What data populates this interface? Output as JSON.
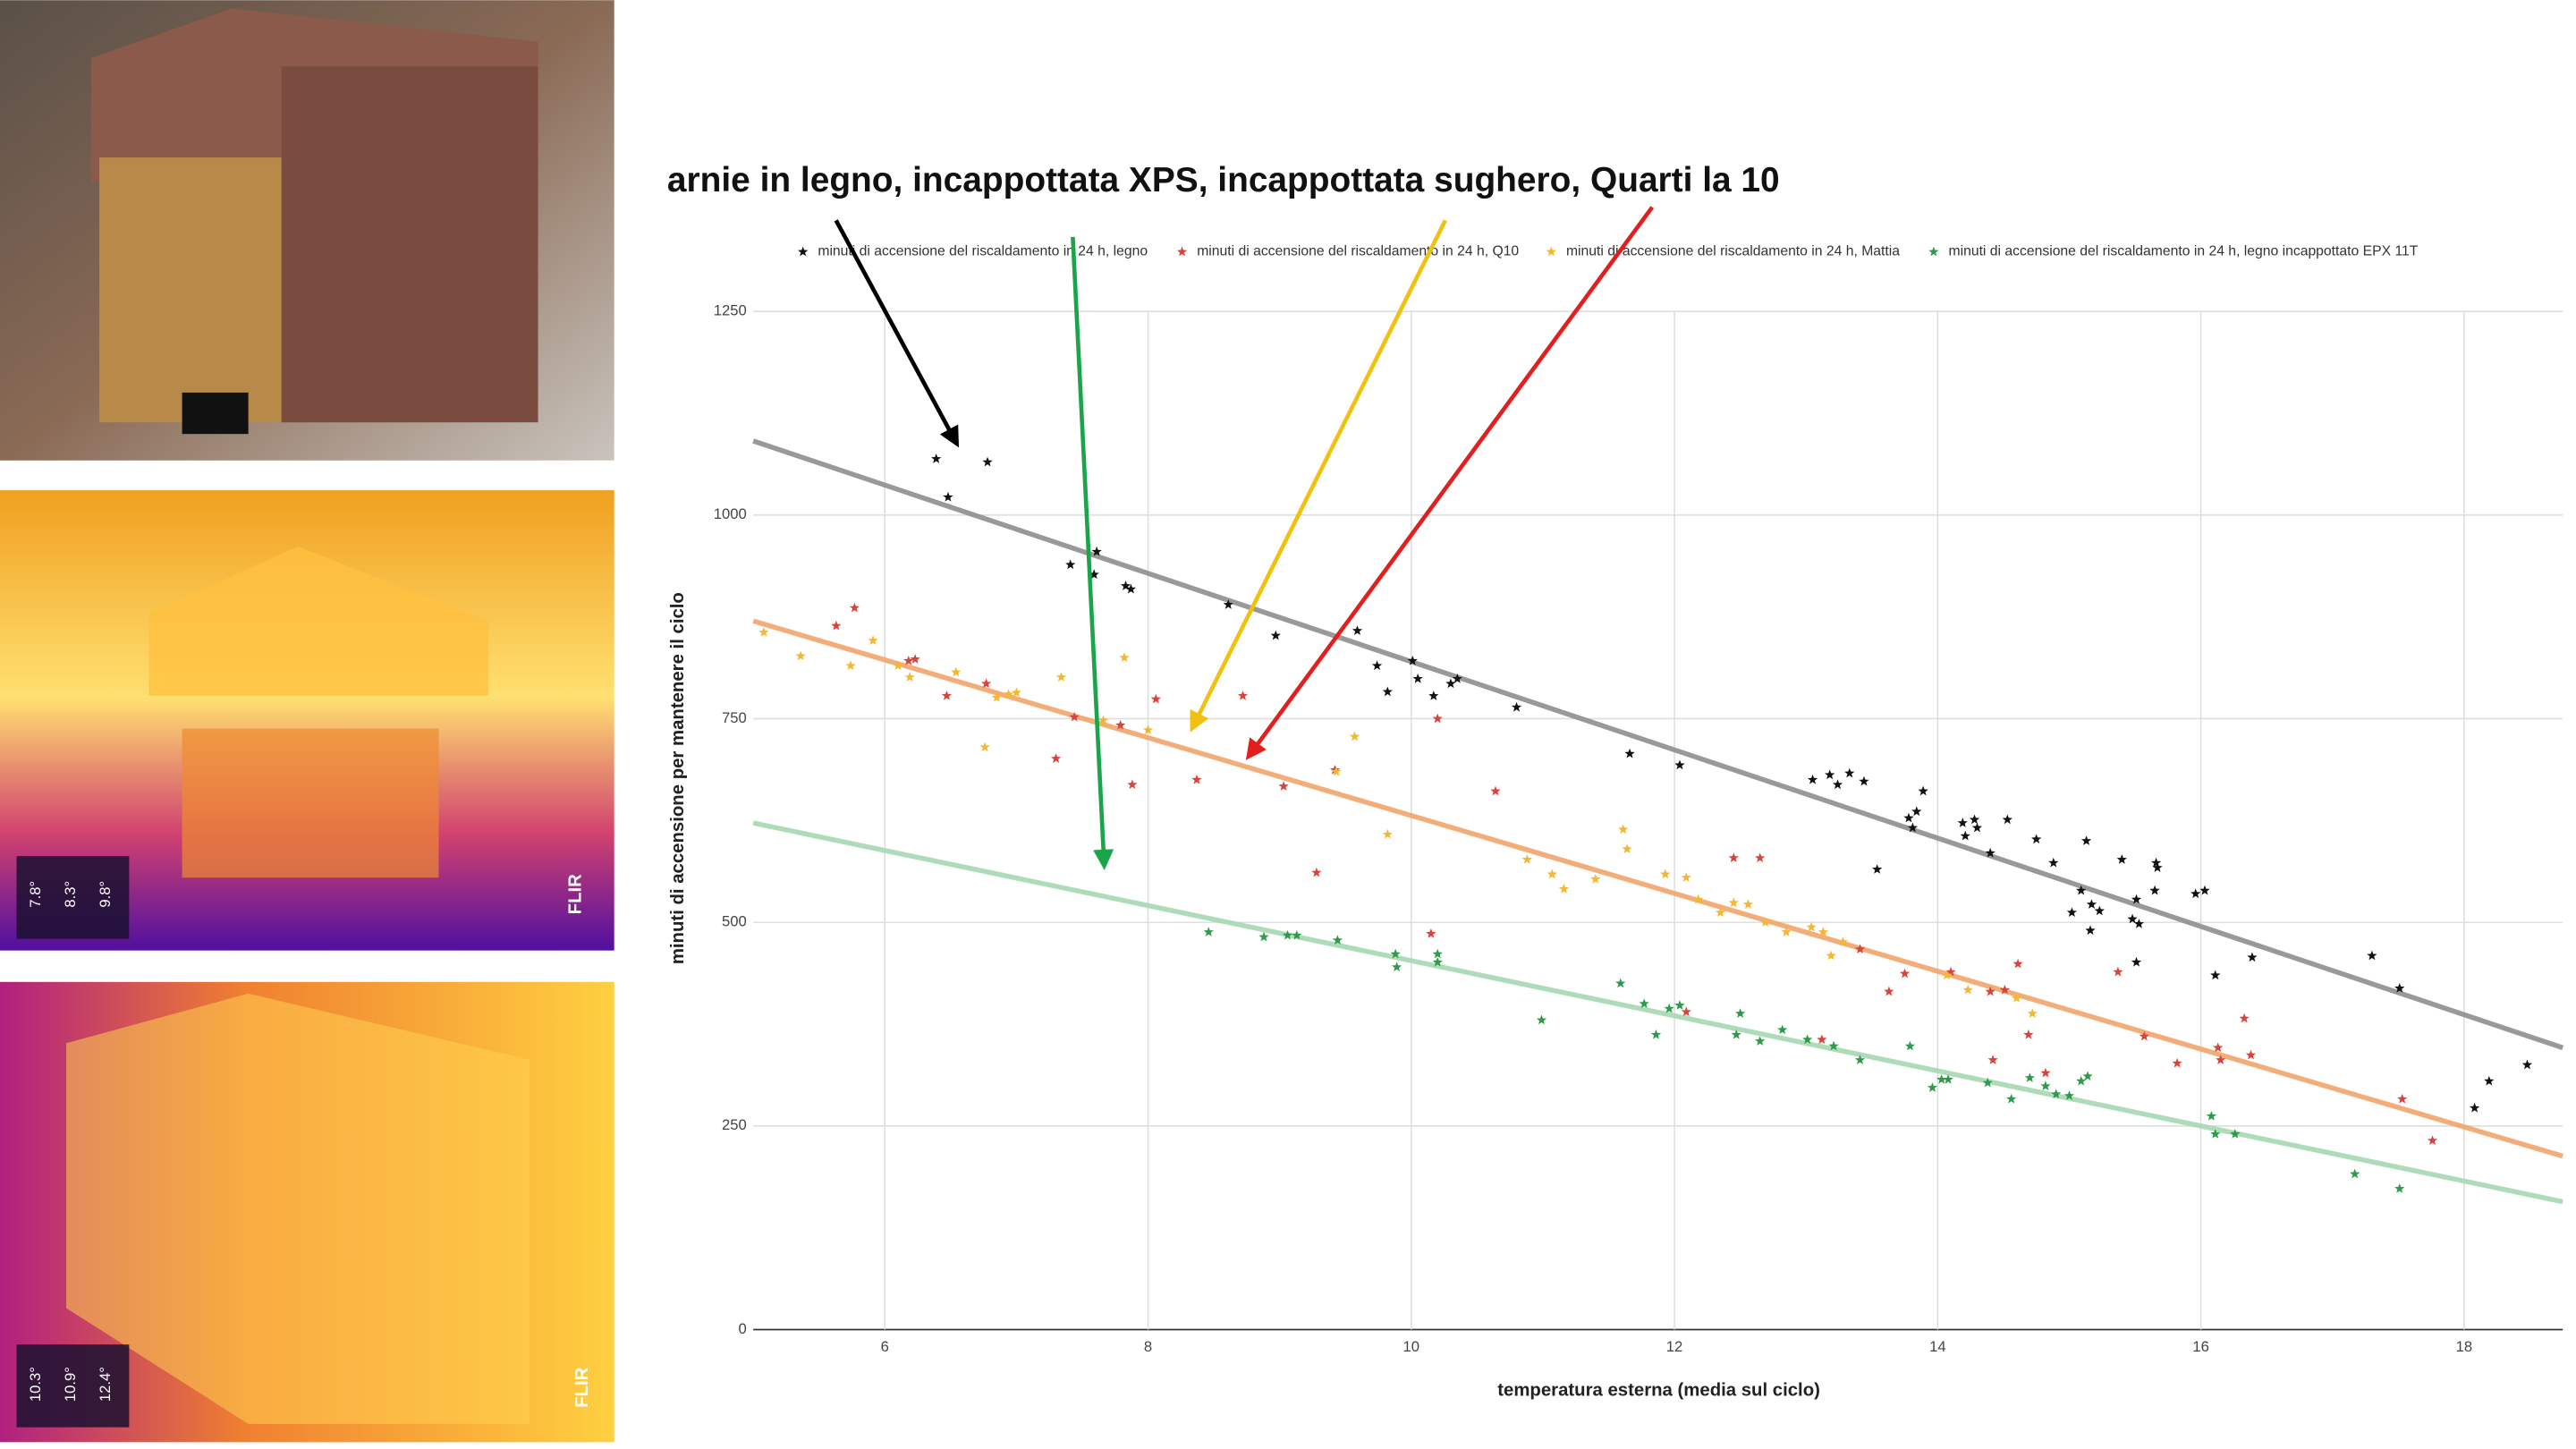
{
  "chart_data": {
    "type": "scatter",
    "title": "arnie in legno, incappottata XPS, incappottata sughero, Quarti la 10",
    "x_label": "temperatura esterna (media sul ciclo)",
    "y_label": "minuti di accensione per mantenere il ciclo",
    "xlim": [
      5,
      18.75
    ],
    "ylim": [
      0,
      1250
    ],
    "xticks": [
      6,
      8,
      10,
      12,
      14,
      16,
      18
    ],
    "yticks": [
      0,
      250,
      500,
      750,
      1000,
      1250
    ],
    "grid": true,
    "legend": "top",
    "series": [
      {
        "name": "minuti di accensione del riscaldamento in 24 h, legno",
        "color": "#111111",
        "x": [
          6.39,
          6.78,
          6.48,
          7.41,
          7.59,
          7.61,
          7.83,
          7.87,
          8.61,
          8.97,
          9.59,
          9.74,
          9.82,
          10.01,
          10.05,
          10.17,
          10.3,
          10.35,
          10.8,
          11.66,
          12.04,
          13.05,
          13.18,
          13.24,
          13.33,
          13.44,
          13.54,
          13.78,
          13.84,
          13.89,
          13.81,
          14.19,
          14.28,
          14.3,
          14.21,
          14.4,
          14.53,
          14.75,
          14.88,
          15.13,
          15.09,
          15.17,
          15.02,
          15.23,
          15.16,
          15.4,
          15.48,
          15.51,
          15.53,
          15.51,
          15.66,
          15.67,
          15.65,
          15.96,
          16.03,
          16.11,
          16.39,
          17.3,
          17.51,
          18.08,
          18.19,
          18.48
        ],
        "values": [
          1069,
          1065,
          1022,
          939,
          927,
          955,
          913,
          909,
          890,
          852,
          858,
          815,
          783,
          821,
          799,
          778,
          793,
          799,
          764,
          707,
          693,
          675,
          681,
          669,
          683,
          673,
          565,
          628,
          636,
          661,
          616,
          622,
          626,
          616,
          606,
          585,
          626,
          602,
          573,
          600,
          539,
          522,
          512,
          514,
          490,
          577,
          504,
          528,
          498,
          451,
          573,
          567,
          539,
          535,
          539,
          435,
          457,
          459,
          419,
          272,
          305,
          325
        ],
        "trendline": {
          "color": "#8e8e8e",
          "x": [
            5,
            18.75
          ],
          "values": [
            1091,
            346
          ]
        }
      },
      {
        "name": "minuti di accensione del riscaldamento in 24 h, Q10",
        "color": "#d9433b",
        "x": [
          5.63,
          5.77,
          6.18,
          6.23,
          6.47,
          6.77,
          7.3,
          7.44,
          7.79,
          7.88,
          8.06,
          8.37,
          8.72,
          9.03,
          9.28,
          9.42,
          10.15,
          10.2,
          10.64,
          12.45,
          12.65,
          12.09,
          13.12,
          13.41,
          13.63,
          13.75,
          14.1,
          14.4,
          14.51,
          14.61,
          14.42,
          14.69,
          14.82,
          15.37,
          15.57,
          15.82,
          16.13,
          16.15,
          16.33,
          16.38,
          17.53,
          17.76
        ],
        "values": [
          864,
          886,
          821,
          823,
          778,
          793,
          701,
          752,
          742,
          669,
          774,
          675,
          778,
          667,
          561,
          687,
          486,
          750,
          661,
          579,
          579,
          390,
          356,
          467,
          415,
          437,
          439,
          415,
          417,
          449,
          331,
          362,
          315,
          439,
          360,
          327,
          346,
          331,
          382,
          337,
          283,
          232
        ],
        "trendline": {
          "color": "#f2a46a",
          "x": [
            5,
            18.75
          ],
          "values": [
            870,
            213
          ]
        }
      },
      {
        "name": "minuti di accensione del riscaldamento in 24 h, Mattia",
        "color": "#f4b731",
        "x": [
          5.08,
          5.36,
          5.74,
          5.91,
          6.1,
          6.19,
          6.54,
          6.76,
          6.85,
          6.94,
          7,
          7.34,
          7.66,
          7.82,
          8,
          9.43,
          9.57,
          9.82,
          10.88,
          11.07,
          11.16,
          11.4,
          11.61,
          11.64,
          11.93,
          12.09,
          12.18,
          12.35,
          12.45,
          12.56,
          12.69,
          12.85,
          13.04,
          13.13,
          13.19,
          13.28,
          14.07,
          14.23,
          14.6,
          14.72
        ],
        "values": [
          856,
          827,
          815,
          846,
          815,
          801,
          807,
          715,
          776,
          780,
          782,
          801,
          748,
          825,
          736,
          685,
          728,
          608,
          577,
          559,
          541,
          553,
          614,
          590,
          559,
          555,
          528,
          512,
          524,
          522,
          500,
          488,
          494,
          488,
          459,
          476,
          435,
          417,
          407,
          388
        ]
      },
      {
        "name": "minuti di accensione del riscaldamento in 24 h, legno incappottato EPX  11T",
        "color": "#2e9b4a",
        "x": [
          8.46,
          8.88,
          9.06,
          9.13,
          9.44,
          9.88,
          9.89,
          10.2,
          10.2,
          10.99,
          11.59,
          11.77,
          11.86,
          11.96,
          12.04,
          12.47,
          12.5,
          12.65,
          12.82,
          13.01,
          13.21,
          13.41,
          13.79,
          13.96,
          14.03,
          14.08,
          14.38,
          14.56,
          14.7,
          14.82,
          14.9,
          15,
          15.09,
          15.14,
          16.08,
          16.11,
          16.26,
          17.17,
          17.51
        ],
        "values": [
          488,
          482,
          484,
          484,
          478,
          461,
          445,
          461,
          451,
          380,
          425,
          400,
          362,
          394,
          398,
          362,
          388,
          354,
          368,
          356,
          348,
          331,
          348,
          297,
          307,
          307,
          303,
          283,
          309,
          299,
          289,
          287,
          305,
          311,
          262,
          240,
          240,
          191,
          173
        ],
        "trendline": {
          "color": "#a6d8b0",
          "x": [
            5,
            18.75
          ],
          "values": [
            622,
            157
          ]
        }
      }
    ]
  },
  "photos": {
    "thermal_1": {
      "readings": [
        "7.8°",
        "8.3°",
        "9.8°"
      ],
      "brand": "FLIR"
    },
    "thermal_2": {
      "readings": [
        "10.3°",
        "10.9°",
        "12.4°"
      ],
      "brand": "FLIR"
    }
  }
}
